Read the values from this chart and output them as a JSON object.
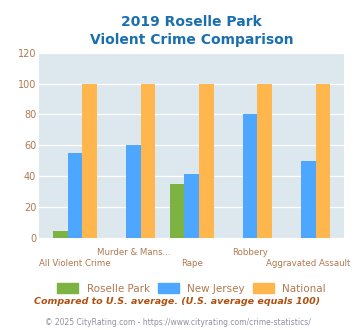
{
  "title_line1": "2019 Roselle Park",
  "title_line2": "Violent Crime Comparison",
  "categories": [
    "All Violent Crime",
    "Murder & Mans...",
    "Rape",
    "Robbery",
    "Aggravated Assault"
  ],
  "roselle_park": [
    4,
    0,
    35,
    0,
    0
  ],
  "new_jersey": [
    55,
    60,
    41,
    80,
    50
  ],
  "national": [
    100,
    100,
    100,
    100,
    100
  ],
  "colors": {
    "roselle_park": "#7cb342",
    "new_jersey": "#4da6ff",
    "national": "#ffb74d"
  },
  "ylim": [
    0,
    120
  ],
  "yticks": [
    0,
    20,
    40,
    60,
    80,
    100,
    120
  ],
  "bg_color": "#dde8ee",
  "title_color": "#1a6faf",
  "xlabel_color": "#b07850",
  "legend_labels": [
    "Roselle Park",
    "New Jersey",
    "National"
  ],
  "footnote1": "Compared to U.S. average. (U.S. average equals 100)",
  "footnote2": "© 2025 CityRating.com - https://www.cityrating.com/crime-statistics/",
  "footnote1_color": "#b05010",
  "footnote2_color": "#9090a0",
  "footnote2_url_color": "#4488cc"
}
